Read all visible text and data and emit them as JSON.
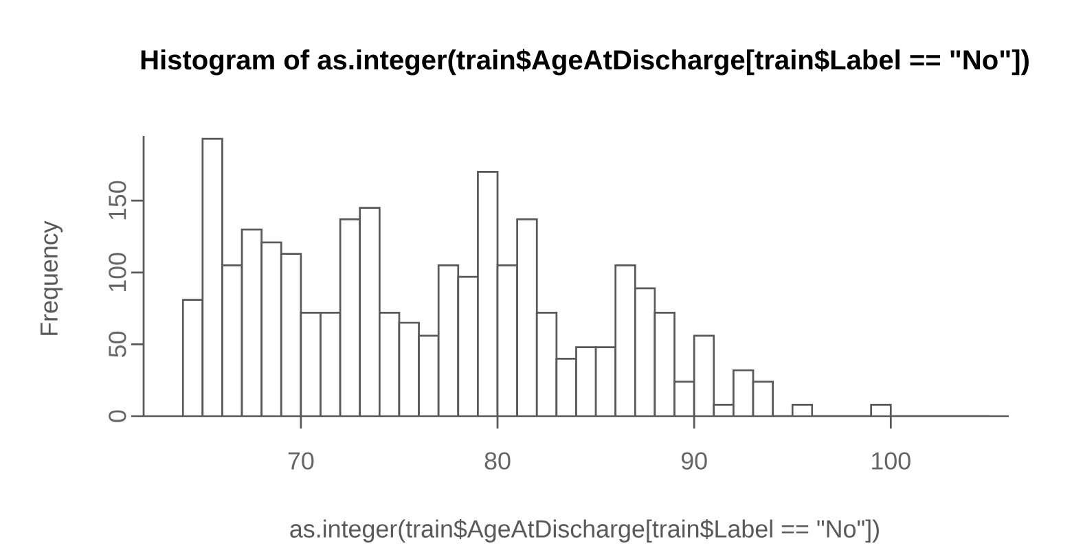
{
  "chart_data": {
    "type": "histogram",
    "title": "Histogram of as.integer(train$AgeAtDischarge[train$Label == \"No\"])",
    "xlabel": "as.integer(train$AgeAtDischarge[train$Label == \"No\"])",
    "ylabel": "Frequency",
    "bins": [
      64,
      65,
      66,
      67,
      68,
      69,
      70,
      71,
      72,
      73,
      74,
      75,
      76,
      77,
      78,
      79,
      80,
      81,
      82,
      83,
      84,
      85,
      86,
      87,
      88,
      89,
      90,
      91,
      92,
      93,
      94,
      95,
      96,
      97,
      98,
      99,
      100,
      101,
      102,
      103,
      104,
      105
    ],
    "values": [
      81,
      193,
      105,
      130,
      121,
      113,
      72,
      72,
      137,
      145,
      72,
      65,
      56,
      105,
      97,
      170,
      105,
      137,
      72,
      40,
      48,
      48,
      105,
      89,
      72,
      24,
      56,
      8,
      32,
      24,
      0,
      8,
      0,
      0,
      0,
      8,
      0,
      0,
      0,
      0,
      0
    ],
    "color": "#ffffff",
    "xlim": [
      62,
      106
    ],
    "ylim": [
      0,
      195
    ],
    "xticks": [
      70,
      80,
      90,
      100
    ],
    "yticks": [
      0,
      50,
      100,
      150
    ],
    "grid": false
  }
}
